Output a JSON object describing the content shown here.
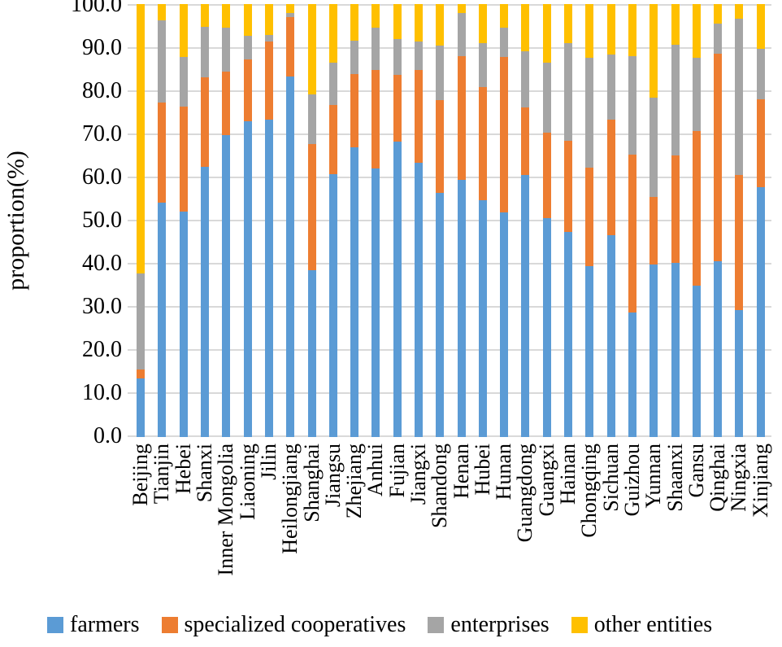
{
  "chart_data": {
    "type": "bar",
    "subtype": "stacked-percent-column",
    "title": "",
    "xlabel": "",
    "ylabel": "proportion(%)",
    "ylim": [
      0,
      100
    ],
    "ytick_step": 10,
    "ytick_labels": [
      "0.0",
      "10.0",
      "20.0",
      "30.0",
      "40.0",
      "50.0",
      "60.0",
      "70.0",
      "80.0",
      "90.0",
      "100.0"
    ],
    "grid": true,
    "gridline_color": "#d9d9d9",
    "legend_position": "bottom",
    "categories": [
      "Beijing",
      "Tianjin",
      "Hebei",
      "Shanxi",
      "Inner Mongolia",
      "Liaoning",
      "Jilin",
      "Heilongjiang",
      "Shanghai",
      "Jiangsu",
      "Zhejiang",
      "Anhui",
      "Fujian",
      "Jiangxi",
      "Shandong",
      "Henan",
      "Hubei",
      "Hunan",
      "Guangdong",
      "Guangxi",
      "Hainan",
      "Chongqing",
      "Sichuan",
      "Guizhou",
      "Yunnan",
      "Shaanxi",
      "Gansu",
      "Qinghai",
      "Ningxia",
      "Xinjiang"
    ],
    "series": [
      {
        "name": "farmers",
        "color": "#5b9bd5",
        "values": [
          13.6,
          54.2,
          52.0,
          62.4,
          69.8,
          72.9,
          73.3,
          83.3,
          38.6,
          60.8,
          67.0,
          62.1,
          68.3,
          63.4,
          56.4,
          59.4,
          54.7,
          51.9,
          60.6,
          50.5,
          47.4,
          39.4,
          46.7,
          28.8,
          39.8,
          40.2,
          35.0,
          40.6,
          29.4,
          57.7
        ]
      },
      {
        "name": "specialized cooperatives",
        "color": "#ed7d31",
        "values": [
          2.0,
          23.0,
          24.4,
          20.6,
          14.6,
          14.3,
          18.1,
          13.7,
          29.1,
          15.9,
          16.9,
          22.6,
          15.3,
          21.3,
          21.4,
          28.6,
          26.2,
          35.9,
          15.5,
          19.8,
          21.1,
          22.8,
          26.7,
          36.5,
          15.7,
          24.8,
          35.7,
          48.0,
          31.2,
          20.3
        ]
      },
      {
        "name": "enterprises",
        "color": "#a5a5a5",
        "values": [
          22.1,
          19.1,
          11.3,
          11.7,
          10.2,
          5.5,
          1.5,
          1.0,
          11.5,
          9.7,
          7.7,
          9.9,
          8.3,
          6.7,
          12.7,
          10.0,
          10.0,
          6.7,
          13.0,
          16.1,
          22.4,
          25.4,
          15.0,
          22.7,
          22.9,
          25.7,
          16.9,
          6.9,
          36.0,
          11.7
        ]
      },
      {
        "name": "other entities",
        "color": "#ffc000",
        "values": [
          62.3,
          3.7,
          12.3,
          5.3,
          5.4,
          7.3,
          7.1,
          2.0,
          20.8,
          13.6,
          8.4,
          5.4,
          8.1,
          8.6,
          9.5,
          2.0,
          9.1,
          5.5,
          10.9,
          13.6,
          9.1,
          12.4,
          11.6,
          12.0,
          21.6,
          9.3,
          12.4,
          4.5,
          3.4,
          10.3
        ]
      }
    ]
  }
}
